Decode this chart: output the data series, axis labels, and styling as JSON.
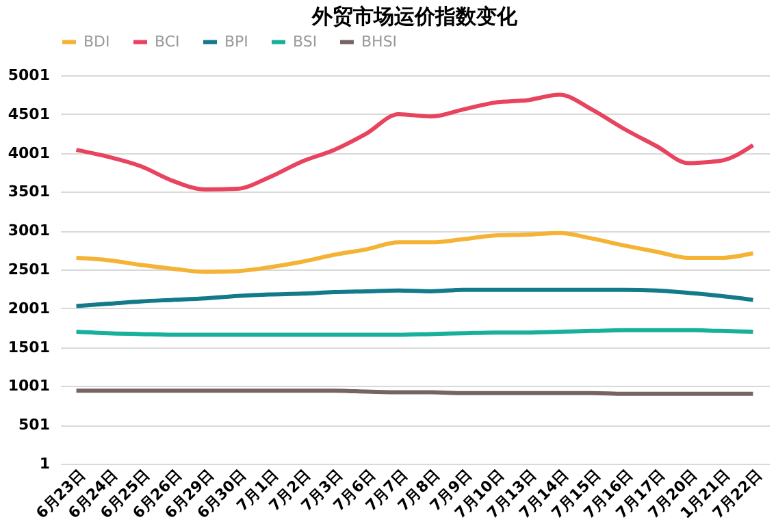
{
  "chart_data": {
    "type": "line",
    "title": "外贸市场运价指数变化",
    "categories": [
      "6月23日",
      "6月24日",
      "6月25日",
      "6月26日",
      "6月29日",
      "6月30日",
      "7月1日",
      "7月2日",
      "7月3日",
      "7月6日",
      "7月7日",
      "7月8日",
      "7月9日",
      "7月10日",
      "7月13日",
      "7月14日",
      "7月15日",
      "7月16日",
      "7月17日",
      "7月20日",
      "1月21日",
      "7月22日"
    ],
    "series": [
      {
        "name": "BDI",
        "color": "#f5b335",
        "values": [
          2650,
          2620,
          2560,
          2510,
          2470,
          2480,
          2530,
          2600,
          2690,
          2760,
          2850,
          2850,
          2890,
          2940,
          2950,
          2970,
          2900,
          2810,
          2730,
          2650,
          2650,
          2710
        ]
      },
      {
        "name": "BCI",
        "color": "#e8435f",
        "values": [
          4040,
          3950,
          3830,
          3640,
          3530,
          3540,
          3690,
          3890,
          4040,
          4250,
          4500,
          4470,
          4560,
          4650,
          4680,
          4750,
          4560,
          4310,
          4090,
          3870,
          3900,
          4100
        ]
      },
      {
        "name": "BPI",
        "color": "#137a8a",
        "values": [
          2030,
          2060,
          2090,
          2110,
          2130,
          2160,
          2180,
          2190,
          2210,
          2220,
          2230,
          2220,
          2240,
          2240,
          2240,
          2240,
          2240,
          2240,
          2230,
          2200,
          2160,
          2110
        ]
      },
      {
        "name": "BSI",
        "color": "#17b09a",
        "values": [
          1700,
          1680,
          1670,
          1660,
          1660,
          1660,
          1660,
          1660,
          1660,
          1660,
          1660,
          1670,
          1680,
          1690,
          1690,
          1700,
          1710,
          1720,
          1720,
          1720,
          1710,
          1700
        ]
      },
      {
        "name": "BHSI",
        "color": "#756461",
        "values": [
          940,
          940,
          940,
          940,
          940,
          940,
          940,
          940,
          940,
          930,
          920,
          920,
          910,
          910,
          910,
          910,
          910,
          900,
          900,
          900,
          900,
          900
        ]
      }
    ],
    "ylim": [
      1,
      5001
    ],
    "yticks": [
      1,
      501,
      1001,
      1501,
      2001,
      2501,
      3001,
      3501,
      4001,
      4501,
      5001
    ],
    "grid": "y",
    "legend": "top",
    "marker": "none",
    "line_style": "solid"
  }
}
